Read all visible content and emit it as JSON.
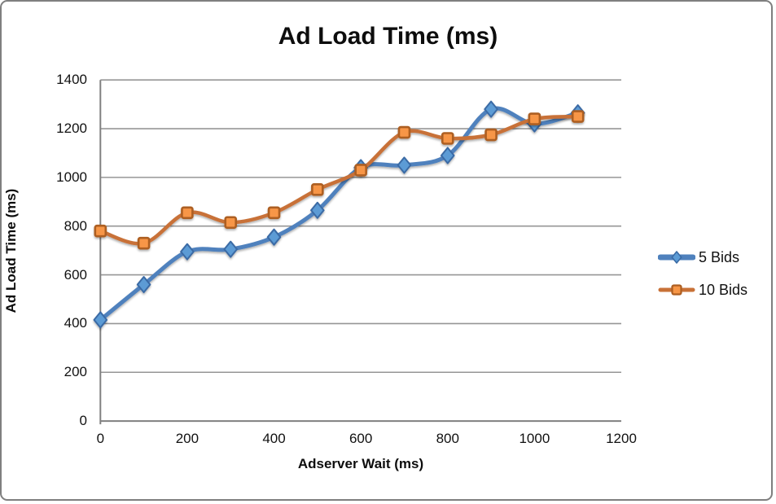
{
  "window": {
    "background": "#ffffff",
    "frame_border_color": "#7f7f7f"
  },
  "chart_data": {
    "type": "line",
    "title": "Ad Load Time (ms)",
    "xlabel": "Adserver Wait (ms)",
    "ylabel": "Ad Load Time (ms)",
    "x": [
      0,
      100,
      200,
      300,
      400,
      500,
      600,
      700,
      800,
      900,
      1000,
      1100
    ],
    "series": [
      {
        "name": "5 Bids",
        "marker": "diamond",
        "line_color": "#4F81BD",
        "marker_fill": "#5B9BD5",
        "marker_stroke": "#3A6BA5",
        "line_width": 5,
        "values": [
          415,
          560,
          695,
          705,
          755,
          865,
          1040,
          1050,
          1090,
          1280,
          1220,
          1265
        ]
      },
      {
        "name": "10 Bids",
        "marker": "square",
        "line_color": "#C87137",
        "marker_fill": "#F79646",
        "marker_stroke": "#AD5E21",
        "line_width": 4.5,
        "values": [
          780,
          730,
          855,
          815,
          855,
          950,
          1030,
          1185,
          1160,
          1175,
          1240,
          1250
        ]
      }
    ],
    "xlim": [
      0,
      1200
    ],
    "xtick_step": 200,
    "ylim": [
      0,
      1400
    ],
    "ytick_step": 200,
    "grid": "horizontal",
    "gridline_color": "#969696",
    "axis_line_color": "#808080",
    "legend_position": "right",
    "smoothed": true
  }
}
